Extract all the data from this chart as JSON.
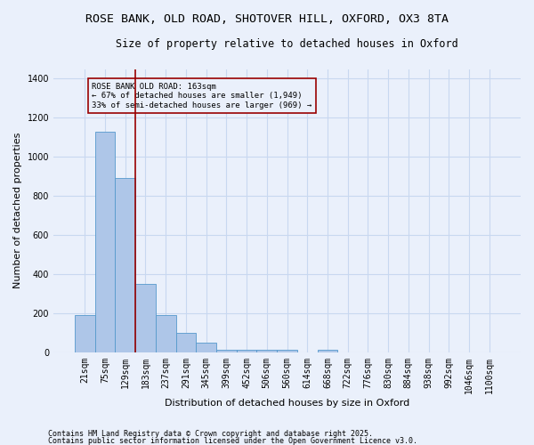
{
  "title1": "ROSE BANK, OLD ROAD, SHOTOVER HILL, OXFORD, OX3 8TA",
  "title2": "Size of property relative to detached houses in Oxford",
  "xlabel": "Distribution of detached houses by size in Oxford",
  "ylabel": "Number of detached properties",
  "bar_categories": [
    "21sqm",
    "75sqm",
    "129sqm",
    "183sqm",
    "237sqm",
    "291sqm",
    "345sqm",
    "399sqm",
    "452sqm",
    "506sqm",
    "560sqm",
    "614sqm",
    "668sqm",
    "722sqm",
    "776sqm",
    "830sqm",
    "884sqm",
    "938sqm",
    "992sqm",
    "1046sqm",
    "1100sqm"
  ],
  "bar_heights": [
    193,
    1128,
    893,
    350,
    193,
    100,
    50,
    15,
    15,
    15,
    15,
    0,
    15,
    0,
    0,
    0,
    0,
    0,
    0,
    0,
    0
  ],
  "bar_color": "#aec6e8",
  "bar_edge_color": "#5599cc",
  "bg_color": "#eaf0fb",
  "grid_color": "#c8d8f0",
  "vline_color": "#990000",
  "annotation_text": "ROSE BANK OLD ROAD: 163sqm\n← 67% of detached houses are smaller (1,949)\n33% of semi-detached houses are larger (969) →",
  "ylim": [
    0,
    1450
  ],
  "yticks": [
    0,
    200,
    400,
    600,
    800,
    1000,
    1200,
    1400
  ],
  "footer1": "Contains HM Land Registry data © Crown copyright and database right 2025.",
  "footer2": "Contains public sector information licensed under the Open Government Licence v3.0.",
  "title_fontsize": 9.5,
  "subtitle_fontsize": 8.5,
  "label_fontsize": 8,
  "tick_fontsize": 7,
  "footer_fontsize": 6
}
